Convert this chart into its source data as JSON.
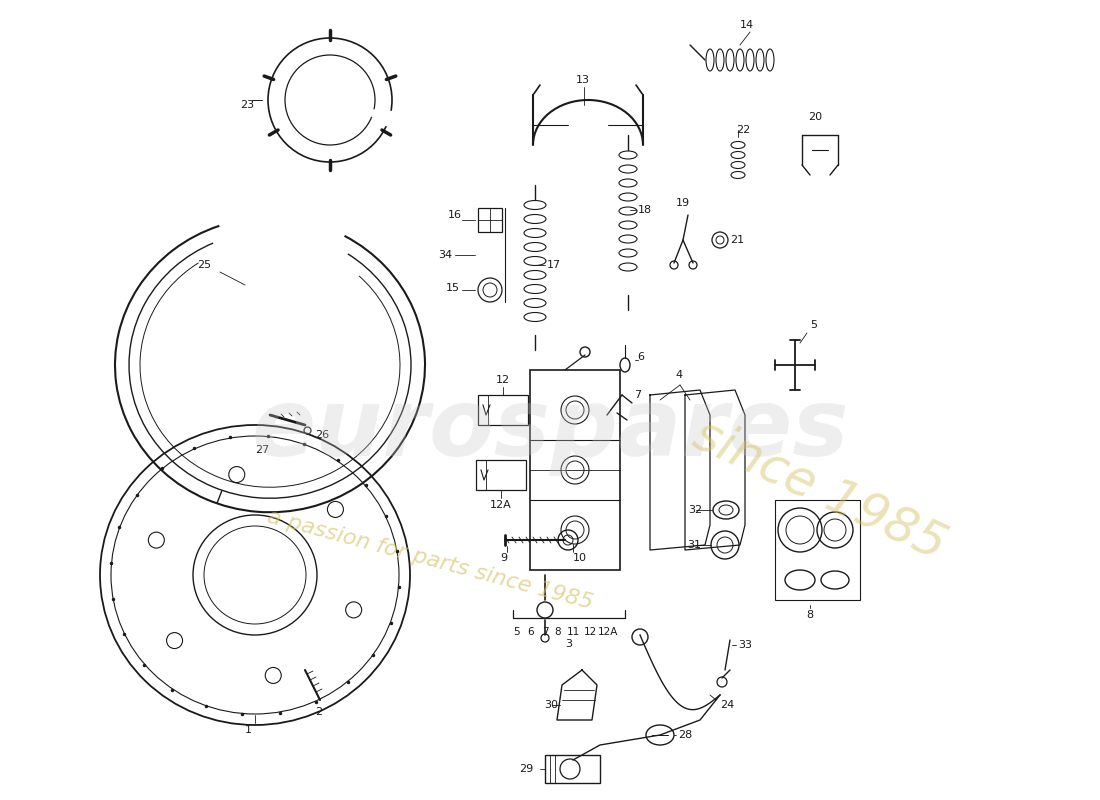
{
  "bg_color": "#ffffff",
  "line_color": "#1a1a1a",
  "watermark_text1": "eurospares",
  "watermark_text2": "a passion for parts since 1985",
  "watermark_color1": "#c8c8c8",
  "watermark_color2": "#d4c060",
  "fig_width": 11.0,
  "fig_height": 8.0,
  "dpi": 100
}
